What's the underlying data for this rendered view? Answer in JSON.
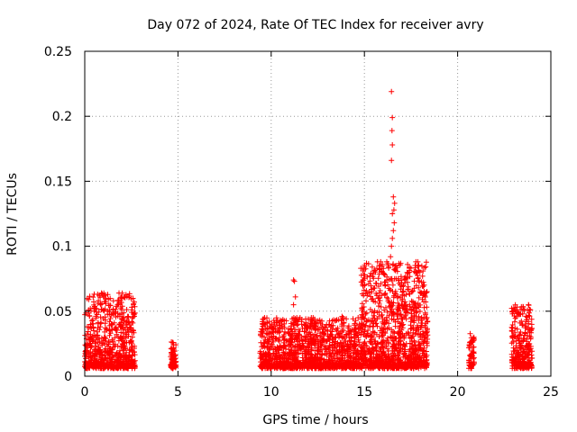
{
  "chart_data": {
    "type": "scatter",
    "title": "Day 072 of 2024, Rate Of TEC Index for receiver avry",
    "xlabel": "GPS time / hours",
    "ylabel": "ROTI / TECUs",
    "xlim": [
      0,
      25
    ],
    "ylim": [
      0,
      0.25
    ],
    "xticks": [
      0,
      5,
      10,
      15,
      20,
      25
    ],
    "yticks": [
      0,
      0.05,
      0.1,
      0.15,
      0.2,
      0.25
    ],
    "xtick_labels": [
      "0",
      "5",
      "10",
      "15",
      "20",
      "25"
    ],
    "ytick_labels": [
      "0",
      "0.05",
      "0.1",
      "0.15",
      "0.2",
      "0.25"
    ],
    "grid": true,
    "marker": "+",
    "color": "#ff0000",
    "series": [
      {
        "name": "ROTI",
        "clusters": [
          {
            "x0": 0.0,
            "x1": 2.7,
            "base": 0.018,
            "peak": 0.064,
            "count": 700
          },
          {
            "x0": 4.6,
            "x1": 4.9,
            "base": 0.015,
            "peak": 0.027,
            "count": 80
          },
          {
            "x0": 9.4,
            "x1": 14.8,
            "base": 0.016,
            "peak": 0.045,
            "count": 1300
          },
          {
            "x0": 14.8,
            "x1": 18.4,
            "base": 0.022,
            "peak": 0.088,
            "count": 1100
          },
          {
            "x0": 20.6,
            "x1": 20.9,
            "base": 0.016,
            "peak": 0.033,
            "count": 60
          },
          {
            "x0": 22.9,
            "x1": 24.0,
            "base": 0.017,
            "peak": 0.055,
            "count": 300
          }
        ],
        "points": [
          [
            16.45,
            0.219
          ],
          [
            16.5,
            0.199
          ],
          [
            16.48,
            0.189
          ],
          [
            16.5,
            0.178
          ],
          [
            16.45,
            0.166
          ],
          [
            16.55,
            0.138
          ],
          [
            16.62,
            0.133
          ],
          [
            16.58,
            0.128
          ],
          [
            16.5,
            0.125
          ],
          [
            16.6,
            0.118
          ],
          [
            16.55,
            0.112
          ],
          [
            16.5,
            0.106
          ],
          [
            16.45,
            0.1
          ],
          [
            16.4,
            0.092
          ],
          [
            16.2,
            0.088
          ],
          [
            16.3,
            0.084
          ],
          [
            16.6,
            0.082
          ],
          [
            16.1,
            0.078
          ],
          [
            16.7,
            0.075
          ],
          [
            11.2,
            0.074
          ],
          [
            11.25,
            0.073
          ],
          [
            11.3,
            0.061
          ],
          [
            11.2,
            0.055
          ],
          [
            17.9,
            0.068
          ],
          [
            18.2,
            0.063
          ],
          [
            0.9,
            0.064
          ],
          [
            1.0,
            0.061
          ],
          [
            0.3,
            0.052
          ],
          [
            2.3,
            0.046
          ],
          [
            23.8,
            0.055
          ],
          [
            23.9,
            0.051
          ],
          [
            13.8,
            0.046
          ],
          [
            10.5,
            0.043
          ],
          [
            9.5,
            0.034
          ]
        ]
      }
    ]
  }
}
